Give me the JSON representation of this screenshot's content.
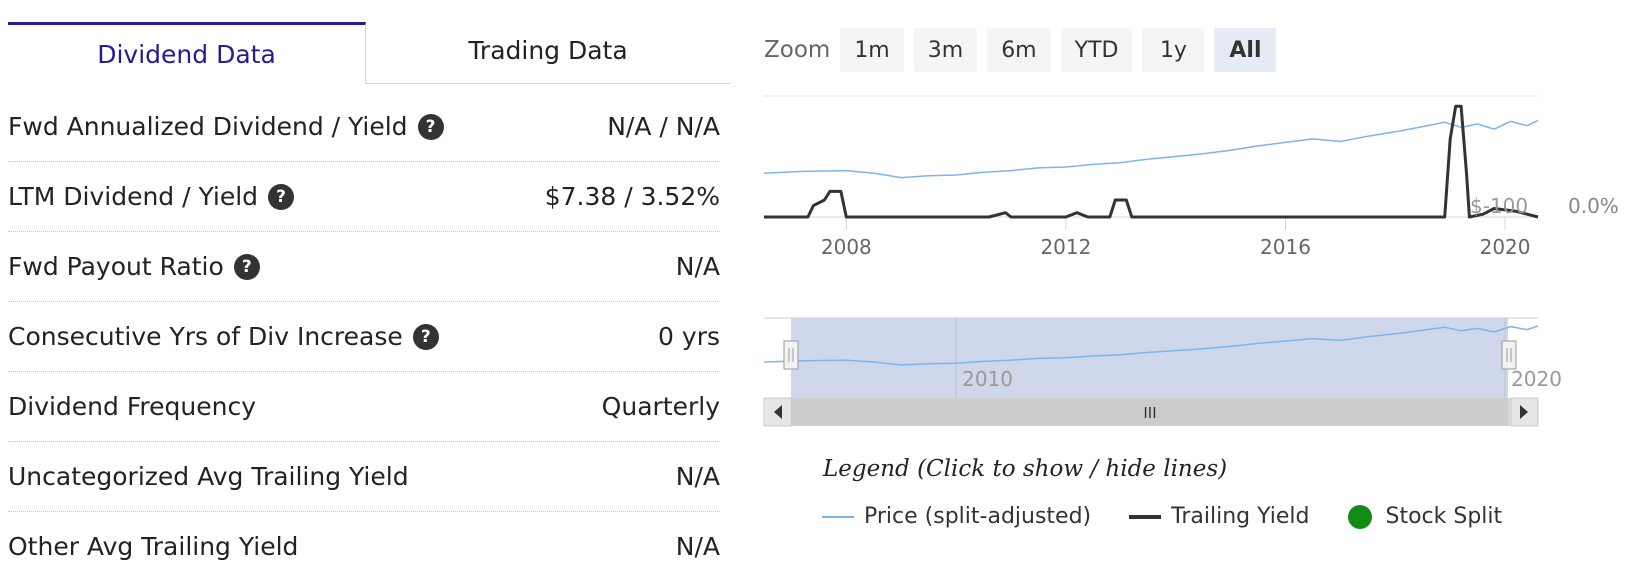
{
  "tabs": {
    "dividend": "Dividend Data",
    "trading": "Trading Data"
  },
  "rows": [
    {
      "label": "Fwd Annualized Dividend / Yield",
      "value": "N/A / N/A",
      "help": true
    },
    {
      "label": "LTM Dividend / Yield",
      "value": "$7.38 / 3.52%",
      "help": true
    },
    {
      "label": "Fwd Payout Ratio",
      "value": "N/A",
      "help": true
    },
    {
      "label": "Consecutive Yrs of Div Increase",
      "value": "0 yrs",
      "help": true
    },
    {
      "label": "Dividend Frequency",
      "value": "Quarterly",
      "help": false
    },
    {
      "label": "Uncategorized Avg Trailing Yield",
      "value": "N/A",
      "help": false
    },
    {
      "label": "Other Avg Trailing Yield",
      "value": "N/A",
      "help": false
    }
  ],
  "help_glyph": "?",
  "zoom": {
    "label": "Zoom",
    "buttons": [
      "1m",
      "3m",
      "6m",
      "YTD",
      "1y",
      "All"
    ],
    "active": "All"
  },
  "chart_data": {
    "type": "line",
    "x_ticks": [
      "2008",
      "2012",
      "2016",
      "2020"
    ],
    "x_range": [
      2006.5,
      2020.6
    ],
    "y_right_label": "0.0%",
    "y_left_label": "$-100",
    "series": [
      {
        "name": "Price (split-adjusted)",
        "color": "#7cb5ec",
        "points": [
          [
            2006.5,
            0.6
          ],
          [
            2007.2,
            0.62
          ],
          [
            2008.0,
            0.63
          ],
          [
            2008.5,
            0.6
          ],
          [
            2009.0,
            0.55
          ],
          [
            2009.5,
            0.57
          ],
          [
            2010.0,
            0.58
          ],
          [
            2010.5,
            0.61
          ],
          [
            2011.0,
            0.63
          ],
          [
            2011.5,
            0.66
          ],
          [
            2012.0,
            0.67
          ],
          [
            2012.5,
            0.7
          ],
          [
            2013.0,
            0.72
          ],
          [
            2013.5,
            0.76
          ],
          [
            2014.0,
            0.79
          ],
          [
            2014.5,
            0.82
          ],
          [
            2015.0,
            0.86
          ],
          [
            2015.5,
            0.91
          ],
          [
            2016.0,
            0.95
          ],
          [
            2016.5,
            0.99
          ],
          [
            2017.0,
            0.96
          ],
          [
            2017.5,
            1.02
          ],
          [
            2018.0,
            1.07
          ],
          [
            2018.5,
            1.13
          ],
          [
            2018.9,
            1.18
          ],
          [
            2019.2,
            1.12
          ],
          [
            2019.5,
            1.16
          ],
          [
            2019.8,
            1.1
          ],
          [
            2020.1,
            1.19
          ],
          [
            2020.4,
            1.14
          ],
          [
            2020.6,
            1.2
          ]
        ]
      },
      {
        "name": "Trailing Yield",
        "color": "#333333",
        "points": [
          [
            2006.5,
            0
          ],
          [
            2007.3,
            0
          ],
          [
            2007.4,
            0.08
          ],
          [
            2007.6,
            0.12
          ],
          [
            2007.7,
            0.18
          ],
          [
            2007.9,
            0.18
          ],
          [
            2008.0,
            0
          ],
          [
            2010.6,
            0
          ],
          [
            2010.9,
            0.03
          ],
          [
            2011.0,
            0
          ],
          [
            2012.0,
            0
          ],
          [
            2012.2,
            0.03
          ],
          [
            2012.4,
            0
          ],
          [
            2012.8,
            0
          ],
          [
            2012.9,
            0.12
          ],
          [
            2013.1,
            0.12
          ],
          [
            2013.2,
            0
          ],
          [
            2018.9,
            0
          ],
          [
            2019.0,
            0.55
          ],
          [
            2019.1,
            0.78
          ],
          [
            2019.2,
            0.78
          ],
          [
            2019.3,
            0.3
          ],
          [
            2019.35,
            0
          ],
          [
            2019.6,
            0.02
          ],
          [
            2019.8,
            0.06
          ],
          [
            2020.2,
            0.04
          ],
          [
            2020.6,
            0
          ]
        ]
      },
      {
        "name": "Stock Split",
        "color": "#138a13",
        "points": []
      }
    ],
    "navigator": {
      "x_ticks": [
        "2010",
        "2020"
      ],
      "scroll_glyph": "III"
    }
  },
  "legend": {
    "title": "Legend (Click to show / hide lines)",
    "items": [
      "Price (split-adjusted)",
      "Trailing Yield",
      "Stock Split"
    ]
  }
}
